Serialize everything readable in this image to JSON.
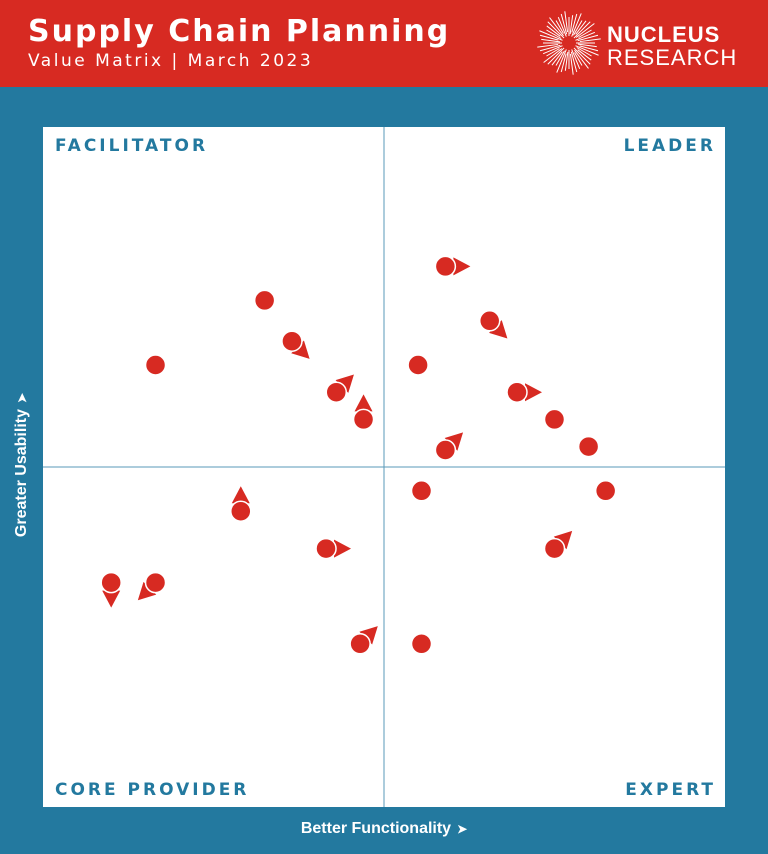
{
  "header": {
    "title": "Supply Chain Planning",
    "subtitle": "Value Matrix  |  March 2023",
    "logo_line1": "NUCLEUS",
    "logo_line2": "RESEARCH"
  },
  "colors": {
    "header_bg": "#d72a22",
    "frame_bg": "#23799f",
    "point": "#d72a22",
    "quadrant_label": "#23799f"
  },
  "chart_data": {
    "type": "scatter",
    "title": "Supply Chain Planning",
    "subtitle": "Value Matrix | March 2023",
    "xlabel": "Better Functionality",
    "ylabel": "Greater Usability",
    "arrow_glyph": "➤",
    "xlim": [
      -1,
      1
    ],
    "ylim": [
      -1,
      1
    ],
    "grid": false,
    "quadrants": {
      "top_left": "FACILITATOR",
      "top_right": "LEADER",
      "bottom_left": "CORE PROVIDER",
      "bottom_right": "EXPERT"
    },
    "points": [
      {
        "x": 0.18,
        "y": 0.59,
        "dir": "right"
      },
      {
        "x": -0.67,
        "y": 0.3,
        "dir": "none"
      },
      {
        "x": -0.35,
        "y": 0.49,
        "dir": "none"
      },
      {
        "x": -0.27,
        "y": 0.37,
        "dir": "down-right"
      },
      {
        "x": 0.31,
        "y": 0.43,
        "dir": "down-right"
      },
      {
        "x": 0.1,
        "y": 0.3,
        "dir": "none"
      },
      {
        "x": -0.14,
        "y": 0.22,
        "dir": "up-right"
      },
      {
        "x": -0.06,
        "y": 0.14,
        "dir": "up"
      },
      {
        "x": 0.39,
        "y": 0.22,
        "dir": "right"
      },
      {
        "x": 0.5,
        "y": 0.14,
        "dir": "none"
      },
      {
        "x": 0.6,
        "y": 0.06,
        "dir": "none"
      },
      {
        "x": 0.18,
        "y": 0.05,
        "dir": "up-right"
      },
      {
        "x": 0.11,
        "y": -0.07,
        "dir": "none"
      },
      {
        "x": 0.65,
        "y": -0.07,
        "dir": "none"
      },
      {
        "x": -0.42,
        "y": -0.13,
        "dir": "up"
      },
      {
        "x": -0.17,
        "y": -0.24,
        "dir": "right"
      },
      {
        "x": 0.5,
        "y": -0.24,
        "dir": "up-right"
      },
      {
        "x": -0.8,
        "y": -0.34,
        "dir": "down"
      },
      {
        "x": -0.67,
        "y": -0.34,
        "dir": "down-left"
      },
      {
        "x": -0.07,
        "y": -0.52,
        "dir": "up-right"
      },
      {
        "x": 0.11,
        "y": -0.52,
        "dir": "none"
      }
    ]
  }
}
